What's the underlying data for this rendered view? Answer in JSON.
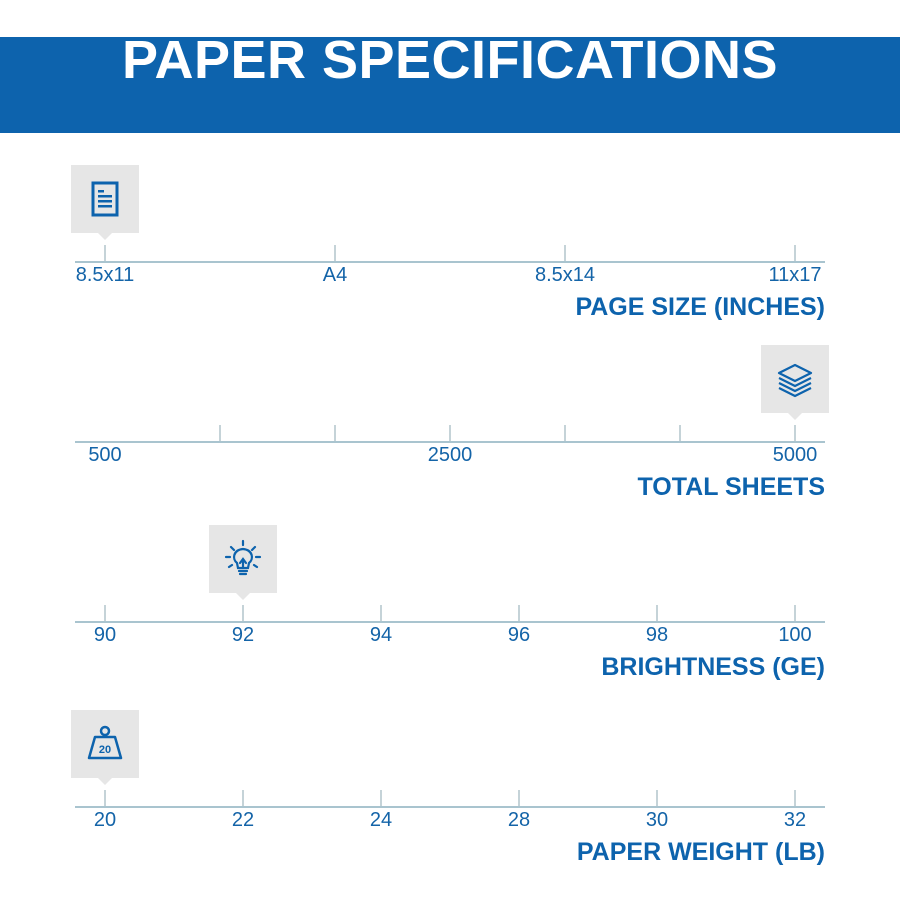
{
  "header": {
    "title": "PAPER SPECIFICATIONS"
  },
  "colors": {
    "brand_blue": "#0d63ad",
    "axis": "#a9c4cf",
    "badge_bg": "#e6e6e6"
  },
  "specs": [
    {
      "title": "PAGE SIZE (INCHES)",
      "icon": "document-icon",
      "labels": [
        "8.5x11",
        "A4",
        "8.5x14",
        "11x17"
      ],
      "label_positions": [
        0,
        1,
        2,
        3
      ],
      "tick_positions": [
        0,
        1,
        2,
        3
      ],
      "scale_max": 3,
      "selected": "8.5x11",
      "selected_position": 0
    },
    {
      "title": "TOTAL SHEETS",
      "icon": "paper-stack-icon",
      "labels": [
        "500",
        "2500",
        "5000"
      ],
      "label_positions": [
        0,
        3,
        6
      ],
      "tick_positions": [
        2,
        3,
        4,
        5,
        6,
        1
      ],
      "scale_max": 6,
      "selected": "5000",
      "selected_position": 6
    },
    {
      "title": "BRIGHTNESS (GE)",
      "icon": "lightbulb-icon",
      "labels": [
        "90",
        "92",
        "94",
        "96",
        "98",
        "100"
      ],
      "label_positions": [
        0,
        1,
        2,
        3,
        4,
        5
      ],
      "tick_positions": [
        0,
        1,
        2,
        3,
        4,
        5
      ],
      "scale_max": 5,
      "selected": "92",
      "selected_position": 1
    },
    {
      "title": "PAPER WEIGHT (LB)",
      "icon": "weight-icon",
      "icon_text": "20",
      "labels": [
        "20",
        "22",
        "24",
        "28",
        "30",
        "32"
      ],
      "label_positions": [
        0,
        1,
        2,
        3,
        4,
        5
      ],
      "tick_positions": [
        0,
        1,
        2,
        3,
        4,
        5
      ],
      "scale_max": 5,
      "selected": "20",
      "selected_position": 0
    }
  ]
}
